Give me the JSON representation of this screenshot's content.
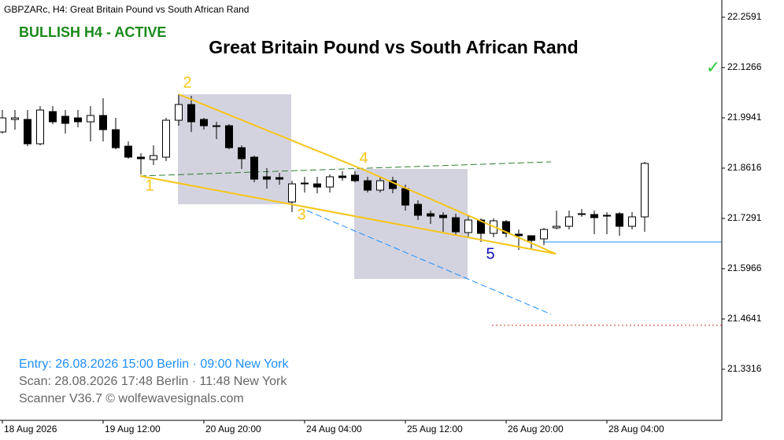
{
  "chart_data": {
    "type": "candlestick",
    "symbol_header": "GBPZARc, H4:  Great Britain Pound vs South African Rand",
    "status": "BULLISH H4 - ACTIVE",
    "title": "Great Britain Pound vs South African Rand",
    "check": "✓",
    "info": [
      "Entry: 26.08.2026  15:00 Berlin · 09:00 New York",
      "Scan:  28.08.2026  17:48 Berlin · 11:48 New York",
      "Scanner V36.7   © wolfewavesignals.com"
    ],
    "wave_labels": [
      "1",
      "2",
      "3",
      "4",
      "5"
    ],
    "categories": [
      "18 Aug 2026",
      null,
      null,
      null,
      null,
      null,
      null,
      null,
      "19 Aug 12:00",
      null,
      null,
      null,
      null,
      null,
      null,
      null,
      "20 Aug 20:00",
      null,
      null,
      null,
      null,
      null,
      null,
      null,
      "24 Aug 04:00",
      null,
      null,
      null,
      null,
      null,
      null,
      null,
      "25 Aug 12:00",
      null,
      null,
      null,
      null,
      null,
      null,
      null,
      "26 Aug 20:00",
      null,
      null,
      null,
      null,
      null,
      null,
      null,
      "28 Aug 04:00",
      null,
      null,
      null
    ],
    "open": [
      21.9568,
      21.9899,
      21.9899,
      21.9257,
      22.0106,
      21.9982,
      21.994,
      21.9837,
      22.0003,
      21.963,
      21.9195,
      21.8905,
      21.8843,
      21.8905,
      21.9878,
      22.0292,
      21.9899,
      21.9733,
      21.9733,
      21.9154,
      21.8905,
      21.8388,
      21.8367,
      21.7725,
      21.8222,
      21.8201,
      21.8118,
      21.8408,
      21.8429,
      21.8284,
      21.8036,
      21.8284,
      21.8077,
      21.7663,
      21.7415,
      21.7373,
      21.7311,
      21.6918,
      21.7249,
      21.6897,
      21.7207,
      21.6876,
      21.6835,
      21.6752,
      21.7042,
      21.7083,
      21.7415,
      21.7394,
      21.7373,
      21.7415,
      21.7083,
      21.7332
    ],
    "high": [
      22.0147,
      22.0147,
      22.0147,
      22.0251,
      22.0251,
      22.0147,
      22.0147,
      22.0251,
      22.0458,
      21.994,
      21.9319,
      21.9009,
      21.9216,
      21.994,
      22.0562,
      22.052,
      21.994,
      21.9837,
      21.9775,
      21.9216,
      21.8947,
      21.8615,
      21.8491,
      21.8284,
      21.8388,
      21.8388,
      21.845,
      21.8533,
      21.8533,
      21.8388,
      21.8388,
      21.8388,
      21.8181,
      21.7766,
      21.7497,
      21.7456,
      21.7415,
      21.7352,
      21.729,
      21.729,
      21.7249,
      21.6999,
      21.6835,
      21.7042,
      21.7497,
      21.7497,
      21.7539,
      21.7497,
      21.7456,
      21.7456,
      21.7456,
      21.8781
    ],
    "low": [
      21.9526,
      21.963,
      21.9195,
      21.9216,
      21.9775,
      21.9526,
      21.9692,
      21.9319,
      21.9319,
      21.9112,
      21.8864,
      21.845,
      21.8698,
      21.8802,
      21.9733,
      21.9568,
      21.963,
      21.9381,
      21.9112,
      21.8595,
      21.8243,
      21.8077,
      21.8181,
      21.7456,
      21.7974,
      21.7953,
      21.7974,
      21.8284,
      21.8243,
      21.7974,
      21.7974,
      21.7953,
      21.7497,
      21.7249,
      21.7145,
      21.6938,
      21.6835,
      21.6793,
      21.6669,
      21.6793,
      21.6793,
      21.6462,
      21.6462,
      21.6586,
      21.7,
      21.7,
      21.7332,
      21.6876,
      21.6876,
      21.6835,
      21.7,
      21.6938
    ],
    "close": [
      21.994,
      21.994,
      21.9257,
      22.0147,
      21.9837,
      21.9795,
      21.9837,
      22.0003,
      21.963,
      21.9154,
      21.8905,
      21.8864,
      21.8947,
      21.9878,
      22.0292,
      21.9837,
      21.9733,
      21.9713,
      21.9154,
      21.8864,
      21.8325,
      21.8325,
      21.8325,
      21.8201,
      21.8222,
      21.8118,
      21.8388,
      21.8367,
      21.8284,
      21.8036,
      21.8284,
      21.8077,
      21.7642,
      21.7373,
      21.7352,
      21.7311,
      21.6938,
      21.7249,
      21.6897,
      21.7228,
      21.6897,
      21.6835,
      21.6711,
      21.7,
      21.7083,
      21.7332,
      21.7415,
      21.7311,
      21.7352,
      21.7083,
      21.7332,
      21.874
    ],
    "up_color": "#ffffff",
    "down_color": "#000000",
    "ylim": [
      21.197,
      22.3046
    ],
    "yticks": [
      22.2591,
      22.1266,
      21.9941,
      21.8616,
      21.7291,
      21.5966,
      21.4641,
      21.3316
    ],
    "grid": false
  }
}
